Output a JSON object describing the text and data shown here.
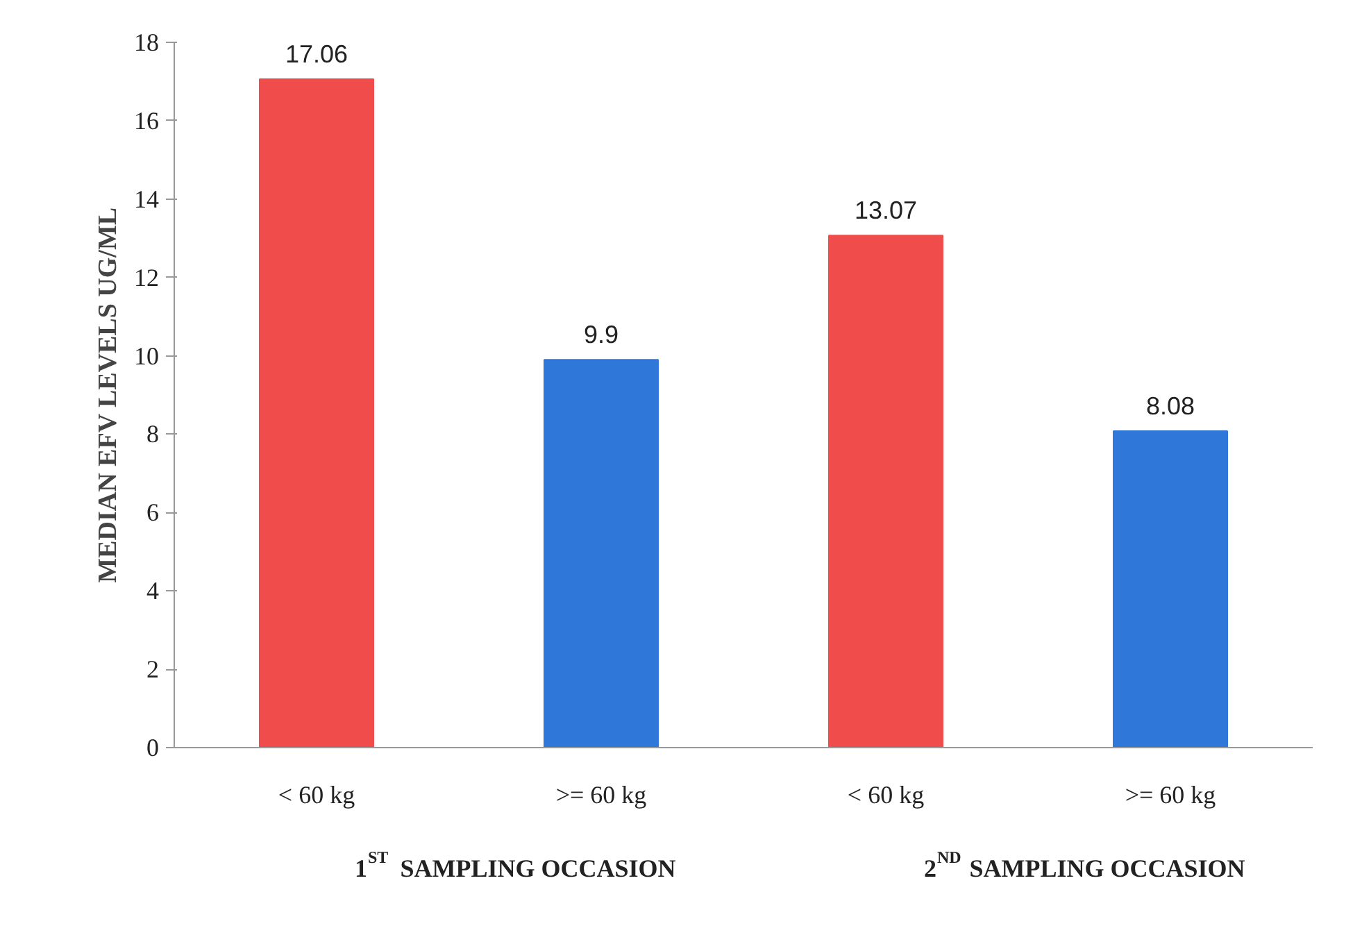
{
  "chart_data": {
    "type": "bar",
    "ylabel": "MEDIAN EFV LEVELS UG/ML",
    "categories": [
      "< 60 kg",
      ">= 60 kg",
      "< 60 kg",
      ">= 60 kg"
    ],
    "values": [
      17.06,
      9.9,
      13.07,
      8.08
    ],
    "colors": [
      "#f04c4c",
      "#2f77d9",
      "#f04c4c",
      "#2f77d9"
    ],
    "ylim": [
      0,
      18
    ],
    "yticks": [
      0,
      2,
      4,
      6,
      8,
      10,
      12,
      14,
      16,
      18
    ],
    "data_labels": true,
    "grid": false,
    "annotations": [
      "1$^{ST}$ SAMPLING OCCASION",
      "2$^{ND}$ SAMPLING OCCASION"
    ]
  }
}
